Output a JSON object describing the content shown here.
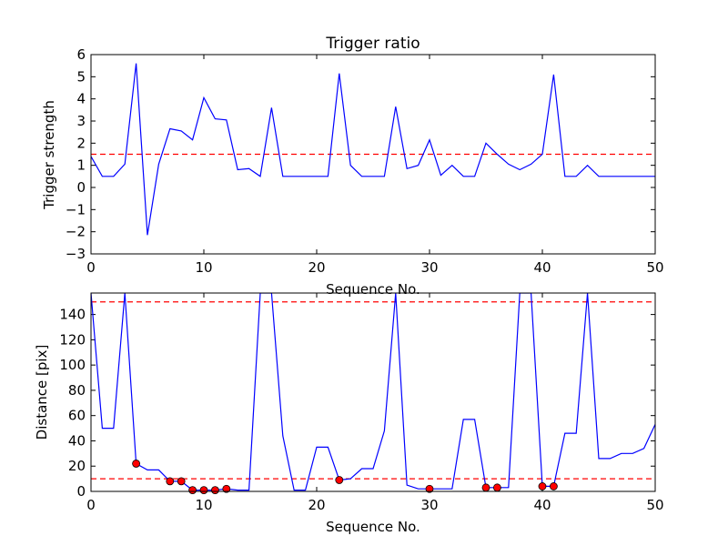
{
  "chart_data": [
    {
      "type": "line",
      "title": "Trigger ratio",
      "xlabel": "Sequence No.",
      "ylabel": "Trigger strength",
      "xlim": [
        0,
        50
      ],
      "ylim": [
        -3,
        6
      ],
      "xticks": [
        0,
        10,
        20,
        30,
        40,
        50
      ],
      "yticks": [
        -3,
        -2,
        -1,
        0,
        1,
        2,
        3,
        4,
        5,
        6
      ],
      "grid": false,
      "series": [
        {
          "color": "#0000ff",
          "x": [
            0,
            1,
            2,
            3,
            4,
            5,
            6,
            7,
            8,
            9,
            10,
            11,
            12,
            13,
            14,
            15,
            16,
            17,
            18,
            19,
            20,
            21,
            22,
            23,
            24,
            25,
            26,
            27,
            28,
            29,
            30,
            31,
            32,
            33,
            34,
            35,
            36,
            37,
            38,
            39,
            40,
            41,
            42,
            43,
            44,
            45,
            46,
            47,
            48,
            49,
            50
          ],
          "y": [
            1.4,
            0.5,
            0.5,
            1.05,
            5.6,
            -2.15,
            1.05,
            2.65,
            2.55,
            2.15,
            4.05,
            3.1,
            3.05,
            0.8,
            0.85,
            0.5,
            3.6,
            0.5,
            0.5,
            0.5,
            0.5,
            0.5,
            5.15,
            1.0,
            0.5,
            0.5,
            0.5,
            3.65,
            0.85,
            1.0,
            2.15,
            0.55,
            1.0,
            0.5,
            0.5,
            2.0,
            1.5,
            1.05,
            0.8,
            1.05,
            1.5,
            5.1,
            0.5,
            0.5,
            1.0,
            0.5,
            0.5,
            0.5,
            0.5,
            0.5,
            0.5
          ]
        }
      ],
      "threshold": {
        "y": 1.5,
        "color": "#ff0000",
        "style": "dashed"
      }
    },
    {
      "type": "line",
      "title": "",
      "xlabel": "Sequence No.",
      "ylabel": "Distance [pix]",
      "xlim": [
        0,
        50
      ],
      "ylim": [
        0,
        157
      ],
      "xticks": [
        0,
        10,
        20,
        30,
        40,
        50
      ],
      "yticks": [
        0,
        20,
        40,
        60,
        80,
        100,
        120,
        140
      ],
      "grid": false,
      "series": [
        {
          "color": "#0000ff",
          "x": [
            0,
            1,
            2,
            3,
            4,
            5,
            6,
            7,
            8,
            9,
            10,
            11,
            12,
            13,
            14,
            15,
            16,
            17,
            18,
            19,
            20,
            21,
            22,
            23,
            24,
            25,
            26,
            27,
            28,
            29,
            30,
            31,
            32,
            33,
            34,
            35,
            36,
            37,
            38,
            39,
            40,
            41,
            42,
            43,
            44,
            45,
            46,
            47,
            48,
            49,
            50
          ],
          "y": [
            157,
            50,
            50,
            157,
            22,
            17,
            17,
            8,
            8,
            1,
            1,
            1,
            2,
            1,
            1,
            157,
            157,
            44,
            1,
            1,
            35,
            35,
            9,
            10,
            18,
            18,
            48,
            157,
            5,
            2,
            2,
            2,
            2,
            57,
            57,
            3,
            3,
            3,
            157,
            157,
            4,
            4,
            46,
            46,
            157,
            26,
            26,
            30,
            30,
            34,
            53
          ]
        }
      ],
      "markers": {
        "color": "#ff0000",
        "x": [
          4,
          7,
          8,
          9,
          10,
          11,
          12,
          22,
          30,
          35,
          36,
          40,
          41
        ],
        "y": [
          22,
          8,
          8,
          1,
          1,
          1,
          2,
          9,
          2,
          3,
          3,
          4,
          4
        ]
      },
      "thresholds": [
        {
          "y": 150,
          "color": "#ff0000",
          "style": "dashed"
        },
        {
          "y": 10,
          "color": "#ff0000",
          "style": "dashed"
        }
      ]
    }
  ]
}
